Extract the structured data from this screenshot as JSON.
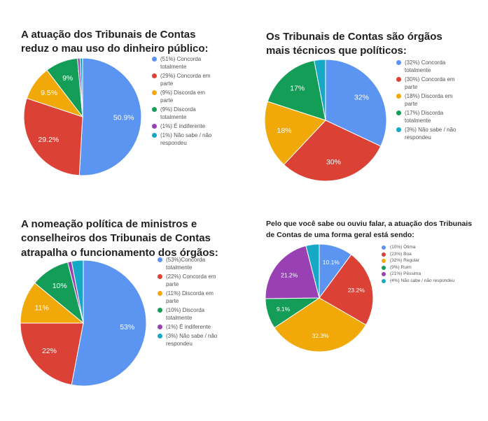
{
  "chart_data": [
    {
      "type": "pie",
      "title": "A atuação dos Tribunais de Contas reduz o mau uso do dinheiro público:",
      "categories": [
        "(51%) Concorda totalmente",
        "(29%) Concorda em parte",
        "(9%) Discorda em parte",
        "(9%) Discorda totalmente",
        "(1%) É indiferente",
        "(1%) Não sabe / não respondeu"
      ],
      "values": [
        50.9,
        29.2,
        9.5,
        9,
        0.7,
        0.7
      ],
      "slice_labels": [
        "50.9%",
        "29.2%",
        "9.5%",
        "9%",
        "",
        ""
      ],
      "colors": [
        "#5c94f2",
        "#dc4135",
        "#f1a90a",
        "#139d56",
        "#9a40b5",
        "#15a9c5"
      ]
    },
    {
      "type": "pie",
      "title": "Os Tribunais de Contas são órgãos mais técnicos que políticos:",
      "categories": [
        "(32%) Concorda totalmente",
        "(30%) Concorda em parte",
        "(18%) Discorda em parte",
        "(17%) Discorda totalmente",
        "(3%) Não sabe / não respondeu"
      ],
      "values": [
        32,
        30,
        18,
        17,
        3
      ],
      "slice_labels": [
        "32%",
        "30%",
        "18%",
        "17%",
        ""
      ],
      "colors": [
        "#5c94f2",
        "#dc4135",
        "#f1a90a",
        "#139d56",
        "#15a9c5"
      ]
    },
    {
      "type": "pie",
      "title": "A nomeação política de ministros e conselheiros dos Tribunais de Contas atrapalha o funcionamento dos órgãos:",
      "categories": [
        "(53%)Concorda totalmente",
        "(22%) Concorda em parte",
        "(11%) Discorda em parte",
        "(10%) Discorda totalmente",
        "(1%) É indiferente",
        "(3%) Não sabe / não respondeu"
      ],
      "values": [
        53,
        22,
        11,
        10,
        1,
        3
      ],
      "slice_labels": [
        "53%",
        "22%",
        "11%",
        "10%",
        "",
        ""
      ],
      "colors": [
        "#5c94f2",
        "#dc4135",
        "#f1a90a",
        "#139d56",
        "#9a40b5",
        "#15a9c5"
      ]
    },
    {
      "type": "pie",
      "title": "Pelo que você sabe ou ouviu falar, a atuação dos Tribunais de Contas de uma forma geral está sendo:",
      "categories": [
        "(10%) Ótima",
        "(23%) Boa",
        "(32%) Regular",
        "(9%) Ruim",
        "(21%) Péssima",
        "(4%) Não sabe / não respondeu"
      ],
      "values": [
        10.1,
        23.2,
        32.3,
        9.1,
        21.2,
        4
      ],
      "slice_labels": [
        "10.1%",
        "23.2%",
        "32.3%",
        "9.1%",
        "21.2%",
        ""
      ],
      "colors": [
        "#5c94f2",
        "#dc4135",
        "#f1a90a",
        "#139d56",
        "#9a40b5",
        "#15a9c5"
      ]
    }
  ]
}
